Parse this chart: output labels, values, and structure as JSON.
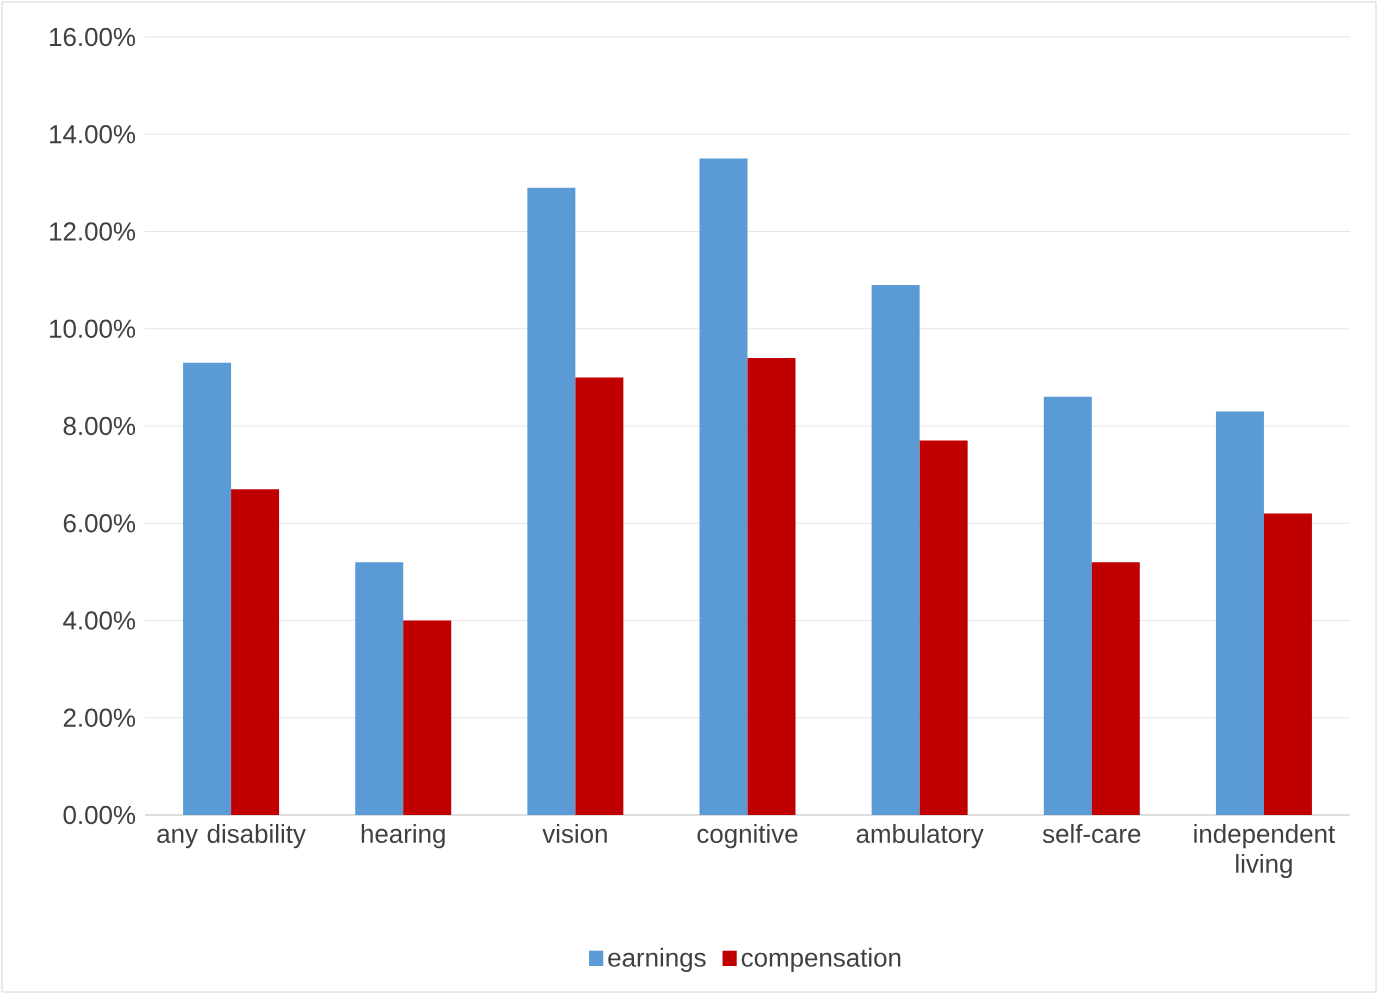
{
  "chart_data": {
    "type": "bar",
    "categories": [
      "any disability",
      "hearing",
      "vision",
      "cognitive",
      "ambulatory",
      "self-care",
      "independent living"
    ],
    "series": [
      {
        "name": "earnings",
        "color": "#5b9bd5",
        "values": [
          9.3,
          5.2,
          12.9,
          13.5,
          10.9,
          8.6,
          8.3
        ]
      },
      {
        "name": "compensation",
        "color": "#c00000",
        "values": [
          6.7,
          4.0,
          9.0,
          9.4,
          7.7,
          5.2,
          6.2
        ]
      }
    ],
    "ylim": [
      0,
      16
    ],
    "yticks": [
      {
        "value": 0,
        "label": "0.00%"
      },
      {
        "value": 2,
        "label": "2.00%"
      },
      {
        "value": 4,
        "label": "4.00%"
      },
      {
        "value": 6,
        "label": "6.00%"
      },
      {
        "value": 8,
        "label": "8.00%"
      },
      {
        "value": 10,
        "label": "10.00%"
      },
      {
        "value": 12,
        "label": "12.00%"
      },
      {
        "value": 14,
        "label": "14.00%"
      },
      {
        "value": 16,
        "label": "16.00%"
      }
    ],
    "grid": "y",
    "legend": "bottom"
  }
}
